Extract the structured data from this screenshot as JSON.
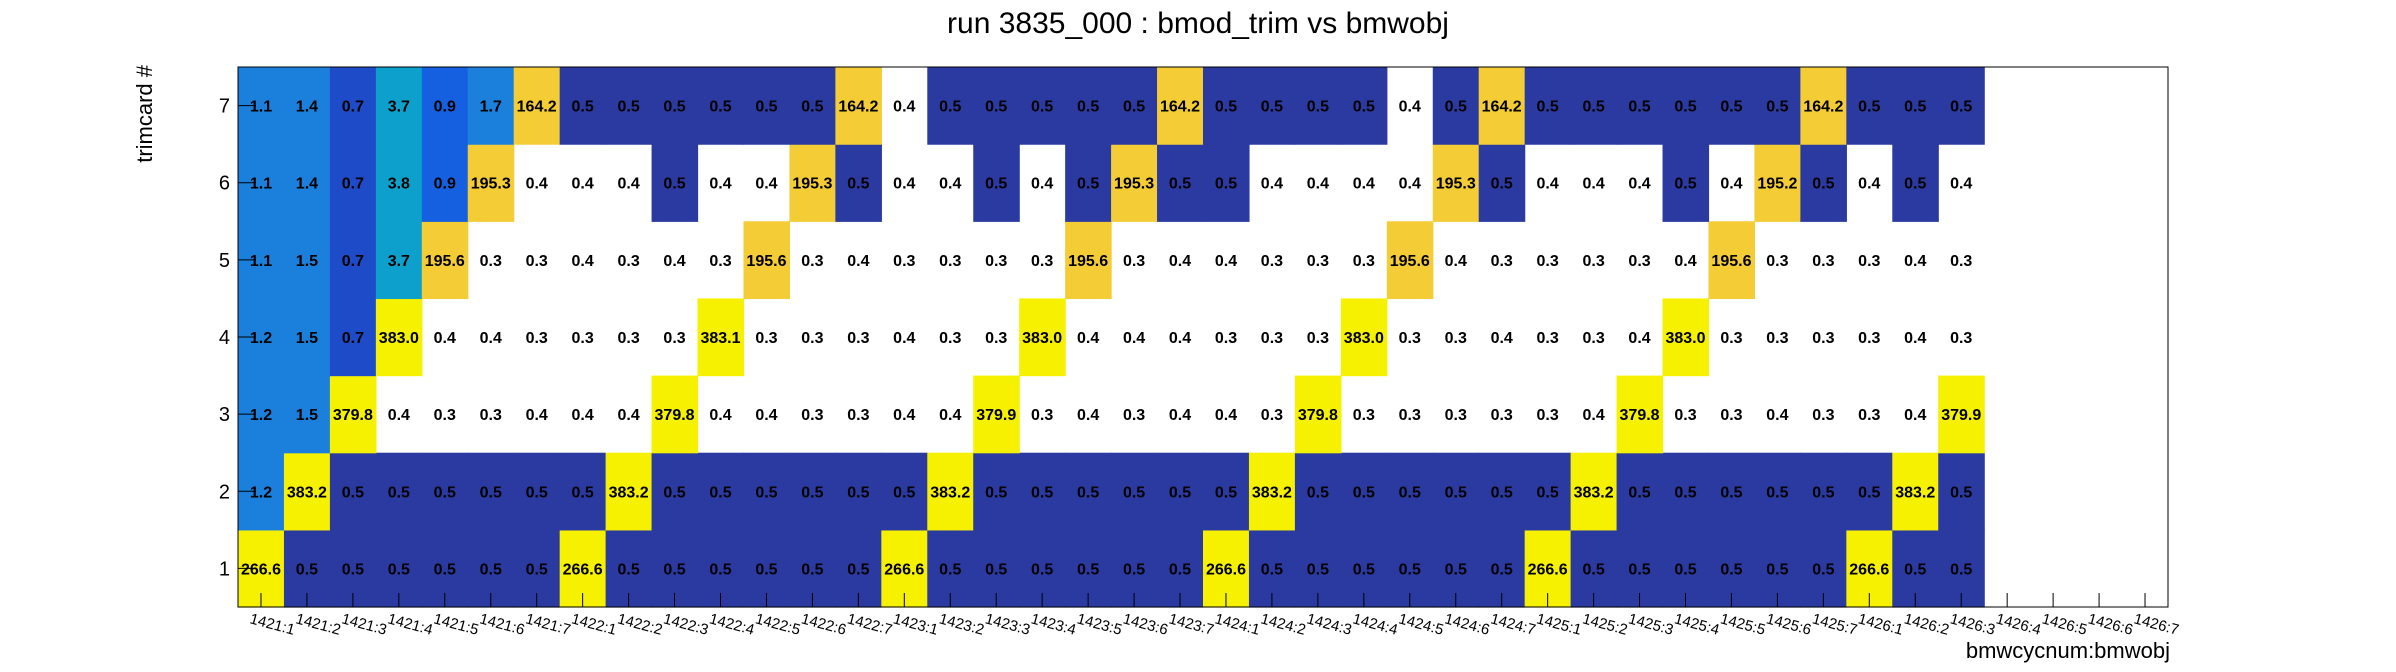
{
  "chart_data": {
    "type": "heatmap",
    "title": "run 3835_000 : bmod_trim vs bmwobj",
    "xlabel": "bmwcycnum:bmwobj",
    "ylabel": "trimcard #",
    "x_categories": [
      "1421:1",
      "1421:2",
      "1421:3",
      "1421:4",
      "1421:5",
      "1421:6",
      "1421:7",
      "1422:1",
      "1422:2",
      "1422:3",
      "1422:4",
      "1422:5",
      "1422:6",
      "1422:7",
      "1423:1",
      "1423:2",
      "1423:3",
      "1423:4",
      "1423:5",
      "1423:6",
      "1423:7",
      "1424:1",
      "1424:2",
      "1424:3",
      "1424:4",
      "1424:5",
      "1424:6",
      "1424:7",
      "1425:1",
      "1425:2",
      "1425:3",
      "1425:4",
      "1425:5",
      "1425:6",
      "1425:7",
      "1426:1",
      "1426:2",
      "1426:3",
      "1426:4",
      "1426:5",
      "1426:6",
      "1426:7"
    ],
    "y_categories": [
      "1",
      "2",
      "3",
      "4",
      "5",
      "6",
      "7"
    ],
    "rows": [
      {
        "y": "1",
        "values": [
          266.6,
          0.5,
          0.5,
          0.5,
          0.5,
          0.5,
          0.5,
          266.6,
          0.5,
          0.5,
          0.5,
          0.5,
          0.5,
          0.5,
          266.6,
          0.5,
          0.5,
          0.5,
          0.5,
          0.5,
          0.5,
          266.6,
          0.5,
          0.5,
          0.5,
          0.5,
          0.5,
          0.5,
          266.6,
          0.5,
          0.5,
          0.5,
          0.5,
          0.5,
          0.5,
          266.6,
          0.5,
          0.5,
          null,
          null,
          null,
          null
        ]
      },
      {
        "y": "2",
        "values": [
          1.2,
          383.2,
          0.5,
          0.5,
          0.5,
          0.5,
          0.5,
          0.5,
          383.2,
          0.5,
          0.5,
          0.5,
          0.5,
          0.5,
          0.5,
          383.2,
          0.5,
          0.5,
          0.5,
          0.5,
          0.5,
          0.5,
          383.2,
          0.5,
          0.5,
          0.5,
          0.5,
          0.5,
          0.5,
          383.2,
          0.5,
          0.5,
          0.5,
          0.5,
          0.5,
          0.5,
          383.2,
          0.5,
          null,
          null,
          null,
          null
        ]
      },
      {
        "y": "3",
        "values": [
          1.2,
          1.5,
          379.8,
          0.4,
          0.3,
          0.3,
          0.4,
          0.4,
          0.4,
          379.8,
          0.4,
          0.4,
          0.3,
          0.3,
          0.4,
          0.4,
          379.9,
          0.3,
          0.4,
          0.3,
          0.4,
          0.4,
          0.3,
          379.8,
          0.3,
          0.3,
          0.3,
          0.3,
          0.3,
          0.4,
          379.8,
          0.3,
          0.3,
          0.4,
          0.3,
          0.3,
          0.4,
          379.9,
          null,
          null,
          null,
          null
        ]
      },
      {
        "y": "4",
        "values": [
          1.2,
          1.5,
          0.7,
          383.0,
          0.4,
          0.4,
          0.3,
          0.3,
          0.3,
          0.3,
          383.1,
          0.3,
          0.3,
          0.3,
          0.4,
          0.3,
          0.3,
          383.0,
          0.4,
          0.4,
          0.4,
          0.3,
          0.3,
          0.3,
          383.0,
          0.3,
          0.3,
          0.4,
          0.3,
          0.3,
          0.4,
          383.0,
          0.3,
          0.3,
          0.3,
          0.3,
          0.4,
          0.3,
          null,
          null,
          null,
          null
        ]
      },
      {
        "y": "5",
        "values": [
          1.1,
          1.5,
          0.7,
          3.7,
          195.6,
          0.3,
          0.3,
          0.4,
          0.3,
          0.4,
          0.3,
          195.6,
          0.3,
          0.4,
          0.3,
          0.3,
          0.3,
          0.3,
          195.6,
          0.3,
          0.4,
          0.4,
          0.3,
          0.3,
          0.3,
          195.6,
          0.4,
          0.3,
          0.3,
          0.3,
          0.3,
          0.4,
          195.6,
          0.3,
          0.3,
          0.3,
          0.4,
          0.3,
          null,
          null,
          null,
          null
        ]
      },
      {
        "y": "6",
        "values": [
          1.1,
          1.4,
          0.7,
          3.8,
          0.9,
          195.3,
          0.4,
          0.4,
          0.4,
          0.5,
          0.4,
          0.4,
          195.3,
          0.5,
          0.4,
          0.4,
          0.5,
          0.4,
          0.5,
          195.3,
          0.5,
          0.5,
          0.4,
          0.4,
          0.4,
          0.4,
          195.3,
          0.5,
          0.4,
          0.4,
          0.4,
          0.5,
          0.4,
          195.2,
          0.5,
          0.4,
          0.5,
          0.4,
          null,
          null,
          null,
          null
        ]
      },
      {
        "y": "7",
        "values": [
          1.1,
          1.4,
          0.7,
          3.7,
          0.9,
          1.7,
          164.2,
          0.5,
          0.5,
          0.5,
          0.5,
          0.5,
          0.5,
          164.2,
          0.4,
          0.5,
          0.5,
          0.5,
          0.5,
          0.5,
          164.2,
          0.5,
          0.5,
          0.5,
          0.5,
          0.4,
          0.5,
          164.2,
          0.5,
          0.5,
          0.5,
          0.5,
          0.5,
          0.5,
          164.2,
          0.5,
          0.5,
          0.5,
          null,
          null,
          null,
          null
        ]
      }
    ],
    "colors": {
      "yellow": "#f6f100",
      "gold": "#f4cd36",
      "teal": "#0da0cc",
      "mid_blue": "#1b80dc",
      "bright_blue": "#1560e0",
      "royal_blue": "#1e4cc8",
      "dark_blue": "#2b3aa0",
      "white": "#ffffff"
    },
    "grid": false,
    "legend": "none"
  }
}
